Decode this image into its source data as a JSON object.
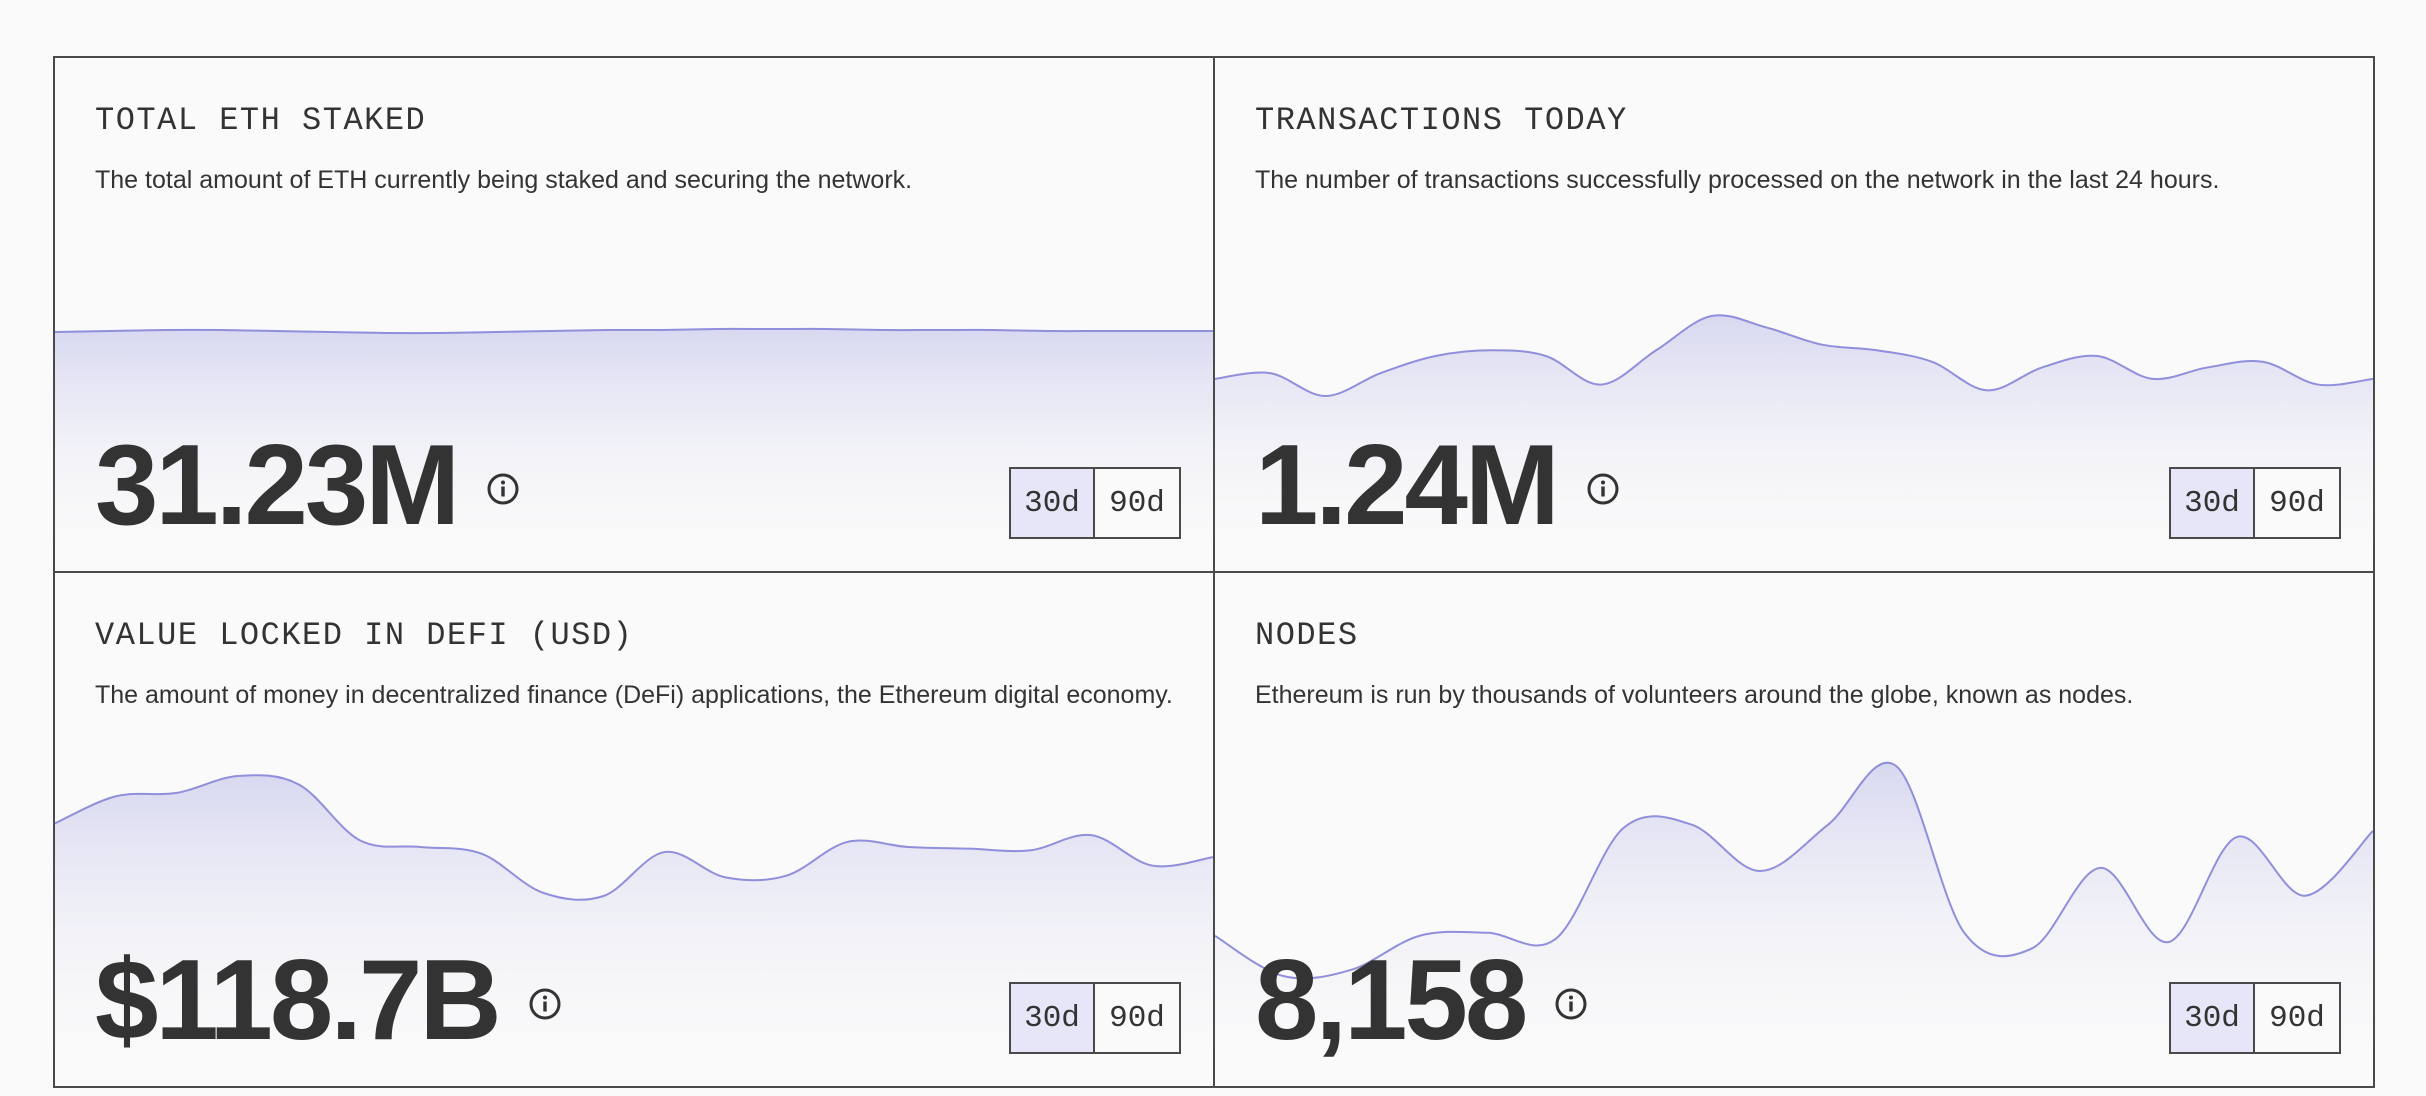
{
  "colors": {
    "accent_line": "#8f8fdc",
    "fill_top": "#d6d6f0",
    "active_button": "#e6e6f8",
    "border": "#4a4a4a"
  },
  "cards": [
    {
      "title": "TOTAL ETH STAKED",
      "description": "The total amount of ETH currently being staked and securing the network.",
      "value": "31.23M",
      "info_icon": "info-icon",
      "range_options": [
        "30d",
        "90d"
      ],
      "range_selected": "30d",
      "sparkline": [
        31.2,
        31.21,
        31.22,
        31.22,
        31.21,
        31.2,
        31.19,
        31.19,
        31.2,
        31.21,
        31.22,
        31.22,
        31.23,
        31.23,
        31.23,
        31.22,
        31.22,
        31.22,
        31.21,
        31.21,
        31.21,
        31.21
      ]
    },
    {
      "title": "TRANSACTIONS TODAY",
      "description": "The number of transactions successfully processed on the network in the last 24 hours.",
      "value": "1.24M",
      "info_icon": "info-icon",
      "range_options": [
        "30d",
        "90d"
      ],
      "range_selected": "30d",
      "sparkline": [
        1.14,
        1.15,
        1.11,
        1.15,
        1.18,
        1.19,
        1.18,
        1.13,
        1.19,
        1.25,
        1.23,
        1.2,
        1.19,
        1.17,
        1.12,
        1.16,
        1.18,
        1.14,
        1.16,
        1.17,
        1.13,
        1.14
      ]
    },
    {
      "title": "VALUE LOCKED IN DEFI (USD)",
      "description": "The amount of money in decentralized finance (DeFi) applications, the Ethereum digital economy.",
      "value": "$118.7B",
      "info_icon": "info-icon",
      "range_options": [
        "30d",
        "90d"
      ],
      "range_selected": "30d",
      "sparkline": [
        123.0,
        124.6,
        124.8,
        125.8,
        125.3,
        122.0,
        121.6,
        121.2,
        118.9,
        118.7,
        121.3,
        119.8,
        119.9,
        121.9,
        121.6,
        121.5,
        121.4,
        122.3,
        120.5,
        121.0
      ]
    },
    {
      "title": "NODES",
      "description": "Ethereum is run by thousands of volunteers around the globe, known as nodes.",
      "value": "8,158",
      "info_icon": "info-icon",
      "range_options": [
        "30d",
        "90d"
      ],
      "range_selected": "30d",
      "sparkline": [
        7870,
        7740,
        7760,
        7870,
        7880,
        7860,
        8220,
        8230,
        8080,
        8230,
        8420,
        7880,
        7830,
        8090,
        7850,
        8190,
        8000,
        8210
      ]
    }
  ]
}
